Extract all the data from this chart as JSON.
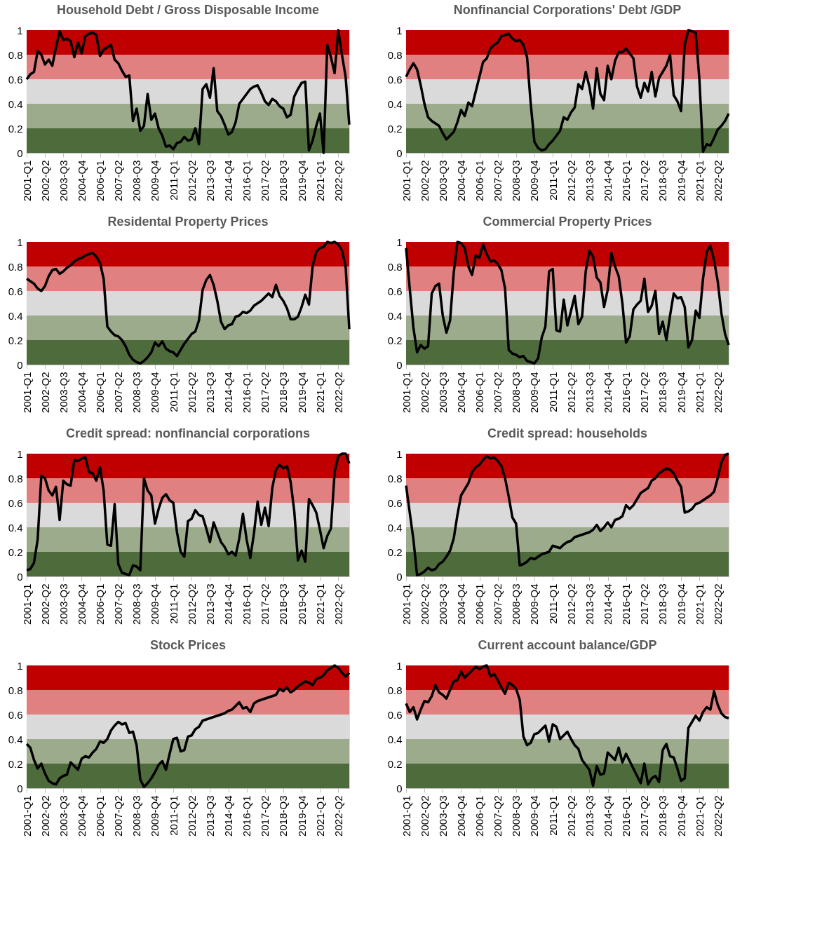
{
  "chart_data": [
    {
      "type": "line",
      "title": "Household Debt / Gross Disposable Income",
      "categories": [
        "2001-Q1",
        null,
        null,
        null,
        null,
        "2002-Q2",
        null,
        null,
        null,
        null,
        "2003-Q3",
        null,
        null,
        null,
        null,
        "2004-Q4",
        null,
        null,
        null,
        null,
        "2006-Q1",
        null,
        null,
        null,
        null,
        "2007-Q2",
        null,
        null,
        null,
        null,
        "2008-Q3",
        null,
        null,
        null,
        null,
        "2009-Q4",
        null,
        null,
        null,
        null,
        "2011-Q1",
        null,
        null,
        null,
        null,
        "2012-Q2",
        null,
        null,
        null,
        null,
        "2013-Q3",
        null,
        null,
        null,
        null,
        "2014-Q4",
        null,
        null,
        null,
        null,
        "2016-Q1",
        null,
        null,
        null,
        null,
        "2017-Q2",
        null,
        null,
        null,
        null,
        "2018-Q3",
        null,
        null,
        null,
        null,
        "2019-Q4",
        null,
        null,
        null,
        null,
        "2021-Q1",
        null,
        null,
        null,
        null,
        "2022-Q2",
        null,
        null,
        null
      ],
      "series": [
        {
          "color": "#000000",
          "values": [
            0.6,
            0.64,
            0.66,
            0.83,
            0.8,
            0.72,
            0.76,
            0.71,
            0.86,
            0.99,
            0.92,
            0.93,
            0.91,
            0.78,
            0.9,
            0.81,
            0.95,
            0.97,
            0.98,
            0.96,
            0.79,
            0.84,
            0.86,
            0.88,
            0.76,
            0.73,
            0.67,
            0.62,
            0.63,
            0.26,
            0.36,
            0.18,
            0.22,
            0.48,
            0.27,
            0.32,
            0.2,
            0.14,
            0.05,
            0.06,
            0.03,
            0.08,
            0.09,
            0.13,
            0.1,
            0.11,
            0.2,
            0.07,
            0.52,
            0.56,
            0.45,
            0.69,
            0.34,
            0.3,
            0.23,
            0.15,
            0.17,
            0.25,
            0.4,
            0.44,
            0.48,
            0.52,
            0.54,
            0.55,
            0.49,
            0.42,
            0.39,
            0.44,
            0.42,
            0.38,
            0.36,
            0.29,
            0.31,
            0.46,
            0.52,
            0.57,
            0.58,
            0.02,
            0.1,
            0.22,
            0.32,
            0.0,
            0.88,
            0.78,
            0.65,
            1.0,
            0.8,
            0.62,
            0.23
          ]
        }
      ],
      "ylim": [
        0,
        1
      ],
      "yticks": [
        0,
        0.2,
        0.4,
        0.6,
        0.8,
        1
      ],
      "bands": [
        {
          "axis": "y",
          "from": 0,
          "to": 0.2,
          "color": "#4e6b3b"
        },
        {
          "axis": "y",
          "from": 0.2,
          "to": 0.4,
          "color": "#9bab8c"
        },
        {
          "axis": "y",
          "from": 0.4,
          "to": 0.6,
          "color": "#dadada"
        },
        {
          "axis": "y",
          "from": 0.6,
          "to": 0.8,
          "color": "#e08080"
        },
        {
          "axis": "y",
          "from": 0.8,
          "to": 1,
          "color": "#c00000"
        }
      ]
    },
    {
      "type": "line",
      "title": "Nonfinancial Corporations' Debt /GDP",
      "categories": [
        "2001-Q1",
        null,
        null,
        null,
        null,
        "2002-Q2",
        null,
        null,
        null,
        null,
        "2003-Q3",
        null,
        null,
        null,
        null,
        "2004-Q4",
        null,
        null,
        null,
        null,
        "2006-Q1",
        null,
        null,
        null,
        null,
        "2007-Q2",
        null,
        null,
        null,
        null,
        "2008-Q3",
        null,
        null,
        null,
        null,
        "2009-Q4",
        null,
        null,
        null,
        null,
        "2011-Q1",
        null,
        null,
        null,
        null,
        "2012-Q2",
        null,
        null,
        null,
        null,
        "2013-Q3",
        null,
        null,
        null,
        null,
        "2014-Q4",
        null,
        null,
        null,
        null,
        "2016-Q1",
        null,
        null,
        null,
        null,
        "2017-Q2",
        null,
        null,
        null,
        null,
        "2018-Q3",
        null,
        null,
        null,
        null,
        "2019-Q4",
        null,
        null,
        null,
        null,
        "2021-Q1",
        null,
        null,
        null,
        null,
        "2022-Q2",
        null,
        null,
        null
      ],
      "series": [
        {
          "color": "#000000",
          "values": [
            0.62,
            0.68,
            0.73,
            0.68,
            0.55,
            0.4,
            0.29,
            0.26,
            0.24,
            0.22,
            0.16,
            0.11,
            0.14,
            0.17,
            0.25,
            0.35,
            0.3,
            0.41,
            0.38,
            0.5,
            0.62,
            0.74,
            0.77,
            0.85,
            0.88,
            0.9,
            0.95,
            0.96,
            0.97,
            0.93,
            0.91,
            0.92,
            0.88,
            0.78,
            0.4,
            0.09,
            0.04,
            0.02,
            0.03,
            0.07,
            0.1,
            0.14,
            0.18,
            0.29,
            0.27,
            0.33,
            0.37,
            0.56,
            0.52,
            0.66,
            0.54,
            0.36,
            0.69,
            0.48,
            0.43,
            0.71,
            0.6,
            0.75,
            0.82,
            0.82,
            0.85,
            0.81,
            0.77,
            0.54,
            0.45,
            0.57,
            0.5,
            0.66,
            0.46,
            0.61,
            0.66,
            0.71,
            0.8,
            0.47,
            0.42,
            0.34,
            0.88,
            1.0,
            0.99,
            0.98,
            0.6,
            0.01,
            0.07,
            0.06,
            0.12,
            0.19,
            0.22,
            0.26,
            0.32
          ]
        }
      ],
      "ylim": [
        0,
        1
      ],
      "yticks": [
        0,
        0.2,
        0.4,
        0.6,
        0.8,
        1
      ],
      "bands": [
        {
          "axis": "y",
          "from": 0,
          "to": 0.2,
          "color": "#4e6b3b"
        },
        {
          "axis": "y",
          "from": 0.2,
          "to": 0.4,
          "color": "#9bab8c"
        },
        {
          "axis": "y",
          "from": 0.4,
          "to": 0.6,
          "color": "#dadada"
        },
        {
          "axis": "y",
          "from": 0.6,
          "to": 0.8,
          "color": "#e08080"
        },
        {
          "axis": "y",
          "from": 0.8,
          "to": 1,
          "color": "#c00000"
        }
      ]
    },
    {
      "type": "line",
      "title": "Residental Property Prices",
      "categories": [
        "2001-Q1",
        null,
        null,
        null,
        null,
        "2002-Q2",
        null,
        null,
        null,
        null,
        "2003-Q3",
        null,
        null,
        null,
        null,
        "2004-Q4",
        null,
        null,
        null,
        null,
        "2006-Q1",
        null,
        null,
        null,
        null,
        "2007-Q2",
        null,
        null,
        null,
        null,
        "2008-Q3",
        null,
        null,
        null,
        null,
        "2009-Q4",
        null,
        null,
        null,
        null,
        "2011-Q1",
        null,
        null,
        null,
        null,
        "2012-Q2",
        null,
        null,
        null,
        null,
        "2013-Q3",
        null,
        null,
        null,
        null,
        "2014-Q4",
        null,
        null,
        null,
        null,
        "2016-Q1",
        null,
        null,
        null,
        null,
        "2017-Q2",
        null,
        null,
        null,
        null,
        "2018-Q3",
        null,
        null,
        null,
        null,
        "2019-Q4",
        null,
        null,
        null,
        null,
        "2021-Q1",
        null,
        null,
        null,
        null,
        "2022-Q2",
        null,
        null,
        null
      ],
      "series": [
        {
          "color": "#000000",
          "values": [
            0.7,
            0.68,
            0.66,
            0.62,
            0.6,
            0.64,
            0.72,
            0.77,
            0.78,
            0.74,
            0.76,
            0.79,
            0.81,
            0.84,
            0.86,
            0.87,
            0.89,
            0.9,
            0.91,
            0.88,
            0.83,
            0.7,
            0.31,
            0.27,
            0.24,
            0.23,
            0.2,
            0.15,
            0.08,
            0.04,
            0.02,
            0.01,
            0.03,
            0.06,
            0.1,
            0.18,
            0.15,
            0.19,
            0.13,
            0.11,
            0.1,
            0.07,
            0.12,
            0.17,
            0.21,
            0.25,
            0.27,
            0.36,
            0.61,
            0.69,
            0.73,
            0.65,
            0.52,
            0.35,
            0.29,
            0.32,
            0.33,
            0.39,
            0.4,
            0.43,
            0.42,
            0.44,
            0.48,
            0.5,
            0.52,
            0.55,
            0.58,
            0.55,
            0.65,
            0.56,
            0.52,
            0.46,
            0.37,
            0.37,
            0.39,
            0.47,
            0.57,
            0.49,
            0.8,
            0.92,
            0.95,
            0.96,
            1.0,
            0.99,
            1.0,
            0.98,
            0.93,
            0.8,
            0.29
          ]
        }
      ],
      "ylim": [
        0,
        1
      ],
      "yticks": [
        0,
        0.2,
        0.4,
        0.6,
        0.8,
        1
      ],
      "bands": [
        {
          "axis": "y",
          "from": 0,
          "to": 0.2,
          "color": "#4e6b3b"
        },
        {
          "axis": "y",
          "from": 0.2,
          "to": 0.4,
          "color": "#9bab8c"
        },
        {
          "axis": "y",
          "from": 0.4,
          "to": 0.6,
          "color": "#dadada"
        },
        {
          "axis": "y",
          "from": 0.6,
          "to": 0.8,
          "color": "#e08080"
        },
        {
          "axis": "y",
          "from": 0.8,
          "to": 1,
          "color": "#c00000"
        }
      ]
    },
    {
      "type": "line",
      "title": "Commercial Property Prices",
      "categories": [
        "2001-Q1",
        null,
        null,
        null,
        null,
        "2002-Q2",
        null,
        null,
        null,
        null,
        "2003-Q3",
        null,
        null,
        null,
        null,
        "2004-Q4",
        null,
        null,
        null,
        null,
        "2006-Q1",
        null,
        null,
        null,
        null,
        "2007-Q2",
        null,
        null,
        null,
        null,
        "2008-Q3",
        null,
        null,
        null,
        null,
        "2009-Q4",
        null,
        null,
        null,
        null,
        "2011-Q1",
        null,
        null,
        null,
        null,
        "2012-Q2",
        null,
        null,
        null,
        null,
        "2013-Q3",
        null,
        null,
        null,
        null,
        "2014-Q4",
        null,
        null,
        null,
        null,
        "2016-Q1",
        null,
        null,
        null,
        null,
        "2017-Q2",
        null,
        null,
        null,
        null,
        "2018-Q3",
        null,
        null,
        null,
        null,
        "2019-Q4",
        null,
        null,
        null,
        null,
        "2021-Q1",
        null,
        null,
        null,
        null,
        "2022-Q2",
        null,
        null,
        null
      ],
      "series": [
        {
          "color": "#000000",
          "values": [
            0.95,
            0.62,
            0.3,
            0.1,
            0.16,
            0.13,
            0.15,
            0.58,
            0.64,
            0.66,
            0.4,
            0.26,
            0.36,
            0.75,
            1.0,
            0.99,
            0.95,
            0.8,
            0.73,
            0.89,
            0.87,
            0.98,
            0.9,
            0.84,
            0.85,
            0.82,
            0.77,
            0.62,
            0.12,
            0.09,
            0.08,
            0.06,
            0.07,
            0.03,
            0.02,
            0.01,
            0.05,
            0.22,
            0.31,
            0.76,
            0.78,
            0.28,
            0.27,
            0.53,
            0.32,
            0.44,
            0.56,
            0.33,
            0.39,
            0.76,
            0.93,
            0.88,
            0.71,
            0.67,
            0.47,
            0.61,
            0.91,
            0.8,
            0.72,
            0.5,
            0.18,
            0.23,
            0.45,
            0.49,
            0.52,
            0.7,
            0.43,
            0.48,
            0.6,
            0.25,
            0.35,
            0.2,
            0.4,
            0.58,
            0.54,
            0.55,
            0.47,
            0.14,
            0.2,
            0.44,
            0.38,
            0.7,
            0.92,
            0.97,
            0.85,
            0.68,
            0.42,
            0.25,
            0.16
          ]
        }
      ],
      "ylim": [
        0,
        1
      ],
      "yticks": [
        0,
        0.2,
        0.4,
        0.6,
        0.8,
        1
      ],
      "bands": [
        {
          "axis": "y",
          "from": 0,
          "to": 0.2,
          "color": "#4e6b3b"
        },
        {
          "axis": "y",
          "from": 0.2,
          "to": 0.4,
          "color": "#9bab8c"
        },
        {
          "axis": "y",
          "from": 0.4,
          "to": 0.6,
          "color": "#dadada"
        },
        {
          "axis": "y",
          "from": 0.6,
          "to": 0.8,
          "color": "#e08080"
        },
        {
          "axis": "y",
          "from": 0.8,
          "to": 1,
          "color": "#c00000"
        }
      ]
    },
    {
      "type": "line",
      "title": "Credit spread: nonfinancial corporations",
      "categories": [
        "2001-Q1",
        null,
        null,
        null,
        null,
        "2002-Q2",
        null,
        null,
        null,
        null,
        "2003-Q3",
        null,
        null,
        null,
        null,
        "2004-Q4",
        null,
        null,
        null,
        null,
        "2006-Q1",
        null,
        null,
        null,
        null,
        "2007-Q2",
        null,
        null,
        null,
        null,
        "2008-Q3",
        null,
        null,
        null,
        null,
        "2009-Q4",
        null,
        null,
        null,
        null,
        "2011-Q1",
        null,
        null,
        null,
        null,
        "2012-Q2",
        null,
        null,
        null,
        null,
        "2013-Q3",
        null,
        null,
        null,
        null,
        "2014-Q4",
        null,
        null,
        null,
        null,
        "2016-Q1",
        null,
        null,
        null,
        null,
        "2017-Q2",
        null,
        null,
        null,
        null,
        "2018-Q3",
        null,
        null,
        null,
        null,
        "2019-Q4",
        null,
        null,
        null,
        null,
        "2021-Q1",
        null,
        null,
        null,
        null,
        "2022-Q2",
        null,
        null,
        null
      ],
      "series": [
        {
          "color": "#000000",
          "values": [
            0.05,
            0.06,
            0.11,
            0.3,
            0.82,
            0.8,
            0.7,
            0.66,
            0.73,
            0.46,
            0.78,
            0.75,
            0.74,
            0.95,
            0.94,
            0.96,
            0.97,
            0.85,
            0.84,
            0.78,
            0.89,
            0.7,
            0.26,
            0.25,
            0.59,
            0.1,
            0.03,
            0.02,
            0.01,
            0.09,
            0.08,
            0.05,
            0.8,
            0.7,
            0.66,
            0.43,
            0.55,
            0.64,
            0.67,
            0.62,
            0.6,
            0.36,
            0.2,
            0.16,
            0.45,
            0.47,
            0.54,
            0.5,
            0.49,
            0.39,
            0.28,
            0.44,
            0.36,
            0.28,
            0.24,
            0.18,
            0.2,
            0.17,
            0.31,
            0.51,
            0.3,
            0.15,
            0.35,
            0.61,
            0.42,
            0.56,
            0.41,
            0.72,
            0.87,
            0.91,
            0.88,
            0.9,
            0.77,
            0.53,
            0.13,
            0.21,
            0.12,
            0.63,
            0.58,
            0.52,
            0.38,
            0.23,
            0.33,
            0.39,
            0.85,
            0.98,
            1.0,
            1.0,
            0.92
          ]
        }
      ],
      "ylim": [
        0,
        1
      ],
      "yticks": [
        0,
        0.2,
        0.4,
        0.6,
        0.8,
        1
      ],
      "bands": [
        {
          "axis": "y",
          "from": 0,
          "to": 0.2,
          "color": "#4e6b3b"
        },
        {
          "axis": "y",
          "from": 0.2,
          "to": 0.4,
          "color": "#9bab8c"
        },
        {
          "axis": "y",
          "from": 0.4,
          "to": 0.6,
          "color": "#dadada"
        },
        {
          "axis": "y",
          "from": 0.6,
          "to": 0.8,
          "color": "#e08080"
        },
        {
          "axis": "y",
          "from": 0.8,
          "to": 1,
          "color": "#c00000"
        }
      ]
    },
    {
      "type": "line",
      "title": "Credit spread: households",
      "categories": [
        "2001-Q1",
        null,
        null,
        null,
        null,
        "2002-Q2",
        null,
        null,
        null,
        null,
        "2003-Q3",
        null,
        null,
        null,
        null,
        "2004-Q4",
        null,
        null,
        null,
        null,
        "2006-Q1",
        null,
        null,
        null,
        null,
        "2007-Q2",
        null,
        null,
        null,
        null,
        "2008-Q3",
        null,
        null,
        null,
        null,
        "2009-Q4",
        null,
        null,
        null,
        null,
        "2011-Q1",
        null,
        null,
        null,
        null,
        "2012-Q2",
        null,
        null,
        null,
        null,
        "2013-Q3",
        null,
        null,
        null,
        null,
        "2014-Q4",
        null,
        null,
        null,
        null,
        "2016-Q1",
        null,
        null,
        null,
        null,
        "2017-Q2",
        null,
        null,
        null,
        null,
        "2018-Q3",
        null,
        null,
        null,
        null,
        "2019-Q4",
        null,
        null,
        null,
        null,
        "2021-Q1",
        null,
        null,
        null,
        null,
        "2022-Q2",
        null,
        null,
        null
      ],
      "series": [
        {
          "color": "#000000",
          "values": [
            0.74,
            0.52,
            0.3,
            0.01,
            0.02,
            0.04,
            0.07,
            0.05,
            0.06,
            0.1,
            0.12,
            0.16,
            0.21,
            0.31,
            0.5,
            0.66,
            0.71,
            0.76,
            0.85,
            0.89,
            0.91,
            0.95,
            0.98,
            0.96,
            0.97,
            0.94,
            0.9,
            0.8,
            0.65,
            0.48,
            0.43,
            0.09,
            0.1,
            0.12,
            0.15,
            0.14,
            0.16,
            0.18,
            0.19,
            0.2,
            0.25,
            0.24,
            0.23,
            0.26,
            0.28,
            0.29,
            0.32,
            0.33,
            0.34,
            0.35,
            0.36,
            0.38,
            0.42,
            0.37,
            0.4,
            0.44,
            0.4,
            0.46,
            0.47,
            0.49,
            0.58,
            0.55,
            0.58,
            0.63,
            0.68,
            0.7,
            0.72,
            0.78,
            0.8,
            0.84,
            0.86,
            0.88,
            0.87,
            0.84,
            0.78,
            0.73,
            0.52,
            0.53,
            0.55,
            0.59,
            0.6,
            0.62,
            0.64,
            0.66,
            0.69,
            0.8,
            0.93,
            0.99,
            1.0
          ]
        }
      ],
      "ylim": [
        0,
        1
      ],
      "yticks": [
        0,
        0.2,
        0.4,
        0.6,
        0.8,
        1
      ],
      "bands": [
        {
          "axis": "y",
          "from": 0,
          "to": 0.2,
          "color": "#4e6b3b"
        },
        {
          "axis": "y",
          "from": 0.2,
          "to": 0.4,
          "color": "#9bab8c"
        },
        {
          "axis": "y",
          "from": 0.4,
          "to": 0.6,
          "color": "#dadada"
        },
        {
          "axis": "y",
          "from": 0.6,
          "to": 0.8,
          "color": "#e08080"
        },
        {
          "axis": "y",
          "from": 0.8,
          "to": 1,
          "color": "#c00000"
        }
      ]
    },
    {
      "type": "line",
      "title": "Stock Prices",
      "categories": [
        "2001-Q1",
        null,
        null,
        null,
        null,
        "2002-Q2",
        null,
        null,
        null,
        null,
        "2003-Q3",
        null,
        null,
        null,
        null,
        "2004-Q4",
        null,
        null,
        null,
        null,
        "2006-Q1",
        null,
        null,
        null,
        null,
        "2007-Q2",
        null,
        null,
        null,
        null,
        "2008-Q3",
        null,
        null,
        null,
        null,
        "2009-Q4",
        null,
        null,
        null,
        null,
        "2011-Q1",
        null,
        null,
        null,
        null,
        "2012-Q2",
        null,
        null,
        null,
        null,
        "2013-Q3",
        null,
        null,
        null,
        null,
        "2014-Q4",
        null,
        null,
        null,
        null,
        "2016-Q1",
        null,
        null,
        null,
        null,
        "2017-Q2",
        null,
        null,
        null,
        null,
        "2018-Q3",
        null,
        null,
        null,
        null,
        "2019-Q4",
        null,
        null,
        null,
        null,
        "2021-Q1",
        null,
        null,
        null,
        null,
        "2022-Q2",
        null,
        null,
        null
      ],
      "series": [
        {
          "color": "#000000",
          "values": [
            0.36,
            0.33,
            0.23,
            0.16,
            0.2,
            0.12,
            0.06,
            0.04,
            0.03,
            0.08,
            0.1,
            0.11,
            0.21,
            0.18,
            0.15,
            0.24,
            0.26,
            0.25,
            0.29,
            0.32,
            0.38,
            0.37,
            0.4,
            0.47,
            0.51,
            0.54,
            0.52,
            0.53,
            0.45,
            0.46,
            0.35,
            0.07,
            0.01,
            0.04,
            0.08,
            0.13,
            0.19,
            0.22,
            0.15,
            0.28,
            0.4,
            0.41,
            0.3,
            0.31,
            0.42,
            0.43,
            0.48,
            0.5,
            0.55,
            0.56,
            0.57,
            0.58,
            0.59,
            0.6,
            0.61,
            0.63,
            0.64,
            0.67,
            0.7,
            0.65,
            0.66,
            0.62,
            0.69,
            0.71,
            0.72,
            0.73,
            0.74,
            0.75,
            0.76,
            0.81,
            0.79,
            0.82,
            0.78,
            0.8,
            0.83,
            0.85,
            0.87,
            0.86,
            0.84,
            0.89,
            0.9,
            0.92,
            0.96,
            0.98,
            1.0,
            0.98,
            0.94,
            0.91,
            0.94
          ]
        }
      ],
      "ylim": [
        0,
        1
      ],
      "yticks": [
        0,
        0.2,
        0.4,
        0.6,
        0.8,
        1
      ],
      "bands": [
        {
          "axis": "y",
          "from": 0,
          "to": 0.2,
          "color": "#4e6b3b"
        },
        {
          "axis": "y",
          "from": 0.2,
          "to": 0.4,
          "color": "#9bab8c"
        },
        {
          "axis": "y",
          "from": 0.4,
          "to": 0.6,
          "color": "#dadada"
        },
        {
          "axis": "y",
          "from": 0.6,
          "to": 0.8,
          "color": "#e08080"
        },
        {
          "axis": "y",
          "from": 0.8,
          "to": 1,
          "color": "#c00000"
        }
      ]
    },
    {
      "type": "line",
      "title": "Current account balance/GDP",
      "categories": [
        "2001-Q1",
        null,
        null,
        null,
        null,
        "2002-Q2",
        null,
        null,
        null,
        null,
        "2003-Q3",
        null,
        null,
        null,
        null,
        "2004-Q4",
        null,
        null,
        null,
        null,
        "2006-Q1",
        null,
        null,
        null,
        null,
        "2007-Q2",
        null,
        null,
        null,
        null,
        "2008-Q3",
        null,
        null,
        null,
        null,
        "2009-Q4",
        null,
        null,
        null,
        null,
        "2011-Q1",
        null,
        null,
        null,
        null,
        "2012-Q2",
        null,
        null,
        null,
        null,
        "2013-Q3",
        null,
        null,
        null,
        null,
        "2014-Q4",
        null,
        null,
        null,
        null,
        "2016-Q1",
        null,
        null,
        null,
        null,
        "2017-Q2",
        null,
        null,
        null,
        null,
        "2018-Q3",
        null,
        null,
        null,
        null,
        "2019-Q4",
        null,
        null,
        null,
        null,
        "2021-Q1",
        null,
        null,
        null,
        null,
        "2022-Q2",
        null,
        null,
        null
      ],
      "series": [
        {
          "color": "#000000",
          "values": [
            0.69,
            0.62,
            0.66,
            0.56,
            0.64,
            0.71,
            0.7,
            0.75,
            0.84,
            0.78,
            0.76,
            0.73,
            0.8,
            0.87,
            0.88,
            0.95,
            0.9,
            0.93,
            0.96,
            0.99,
            0.97,
            0.99,
            1.0,
            0.91,
            0.93,
            0.88,
            0.82,
            0.77,
            0.86,
            0.84,
            0.81,
            0.72,
            0.42,
            0.35,
            0.37,
            0.44,
            0.45,
            0.48,
            0.51,
            0.38,
            0.52,
            0.5,
            0.4,
            0.43,
            0.46,
            0.4,
            0.35,
            0.32,
            0.23,
            0.19,
            0.15,
            0.02,
            0.18,
            0.11,
            0.12,
            0.29,
            0.26,
            0.23,
            0.33,
            0.21,
            0.28,
            0.22,
            0.16,
            0.1,
            0.04,
            0.2,
            0.03,
            0.08,
            0.1,
            0.05,
            0.31,
            0.36,
            0.26,
            0.25,
            0.16,
            0.06,
            0.08,
            0.49,
            0.54,
            0.59,
            0.55,
            0.62,
            0.66,
            0.64,
            0.79,
            0.68,
            0.61,
            0.58,
            0.57
          ]
        }
      ],
      "ylim": [
        0,
        1
      ],
      "yticks": [
        0,
        0.2,
        0.4,
        0.6,
        0.8,
        1
      ],
      "bands": [
        {
          "axis": "y",
          "from": 0,
          "to": 0.2,
          "color": "#4e6b3b"
        },
        {
          "axis": "y",
          "from": 0.2,
          "to": 0.4,
          "color": "#9bab8c"
        },
        {
          "axis": "y",
          "from": 0.4,
          "to": 0.6,
          "color": "#dadada"
        },
        {
          "axis": "y",
          "from": 0.6,
          "to": 0.8,
          "color": "#e08080"
        },
        {
          "axis": "y",
          "from": 0.8,
          "to": 1,
          "color": "#c00000"
        }
      ]
    }
  ]
}
